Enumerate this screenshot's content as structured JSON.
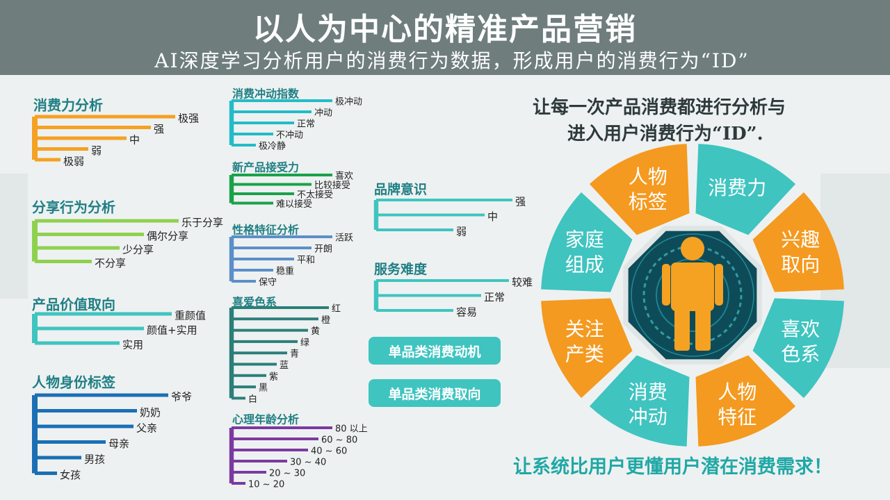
{
  "header": {
    "title": "以人为中心的精准产品营销",
    "subtitle": "AI深度学习分析用户的消费行为数据，形成用户的消费行为“ID”"
  },
  "trees": [
    {
      "id": "consumption-power",
      "title": "消费力分析",
      "color": "#f5a122",
      "items": [
        "极强",
        "强",
        "中",
        "弱",
        "极弱"
      ]
    },
    {
      "id": "sharing-behavior",
      "title": "分享行为分析",
      "color": "#8fd14f",
      "items": [
        "乐于分享",
        "偶尔分享",
        "少分享",
        "不分享"
      ]
    },
    {
      "id": "product-value",
      "title": "产品价值取向",
      "color": "#3fc4c0",
      "items": [
        "重颜值",
        "颜值+实用",
        "实用"
      ]
    },
    {
      "id": "identity-tag",
      "title": "人物身份标签",
      "color": "#1b6fb5",
      "items": [
        "爷爷",
        "奶奶",
        "父亲",
        "母亲",
        "男孩",
        "女孩"
      ]
    },
    {
      "id": "impulse-index",
      "title": "消费冲动指数",
      "color": "#22bcc8",
      "items": [
        "极冲动",
        "冲动",
        "正常",
        "不冲动",
        "极冷静"
      ]
    },
    {
      "id": "new-product",
      "title": "新产品接受力",
      "color": "#1aa24a",
      "items": [
        "喜欢",
        "比较接受",
        "不太接受",
        "难以接受"
      ]
    },
    {
      "id": "personality",
      "title": "性格特征分析",
      "color": "#5b8fc9",
      "items": [
        "活跃",
        "开朗",
        "平和",
        "稳重",
        "保守"
      ]
    },
    {
      "id": "favorite-color",
      "title": "喜爱色系",
      "color": "#2b7f7a",
      "items": [
        "红",
        "橙",
        "黄",
        "绿",
        "青",
        "蓝",
        "紫",
        "黑",
        "白"
      ]
    },
    {
      "id": "psych-age",
      "title": "心理年龄分析",
      "color": "#7c3aa0",
      "items": [
        "80 以上",
        "60 ~ 80",
        "40 ~ 60",
        "30 ~ 40",
        "20 ~ 30",
        "10 ~ 20"
      ]
    },
    {
      "id": "brand-awareness",
      "title": "品牌意识",
      "color": "#3fc4c0",
      "items": [
        "强",
        "中",
        "弱"
      ]
    },
    {
      "id": "service-difficulty",
      "title": "服务难度",
      "color": "#3fc4c0",
      "items": [
        "较难",
        "正常",
        "容易"
      ]
    }
  ],
  "buttons": {
    "motive": "单品类消费动机",
    "orientation": "单品类消费取向"
  },
  "right": {
    "line1": "让每一次产品消费都进行分析与",
    "line2": "进入用户消费行为“ID”.",
    "bottom": "让系统比用户更懂用户潜在消费需求！"
  },
  "wheel": {
    "colors": {
      "orange": "#f49a20",
      "teal": "#3fc4c0",
      "center": "#0e4b58",
      "figure": "#f5a122"
    },
    "segments": [
      {
        "l1": "消费力",
        "l2": "",
        "color": "teal"
      },
      {
        "l1": "兴趣",
        "l2": "取向",
        "color": "orange"
      },
      {
        "l1": "喜欢",
        "l2": "色系",
        "color": "teal"
      },
      {
        "l1": "人物",
        "l2": "特征",
        "color": "orange"
      },
      {
        "l1": "消费",
        "l2": "冲动",
        "color": "teal"
      },
      {
        "l1": "关注",
        "l2": "产类",
        "color": "orange"
      },
      {
        "l1": "家庭",
        "l2": "组成",
        "color": "teal"
      },
      {
        "l1": "人物",
        "l2": "标签",
        "color": "orange"
      }
    ]
  }
}
